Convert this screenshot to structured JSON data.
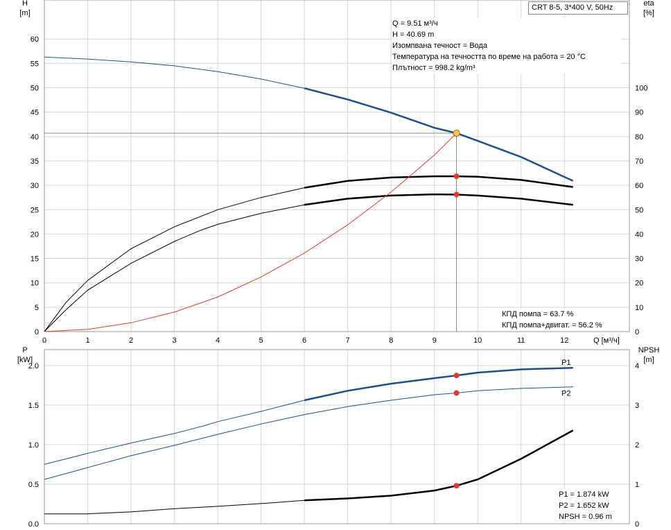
{
  "chart_data": [
    {
      "type": "line",
      "title": "CRT 8-5, 3*400 V, 50Hz",
      "xlabel": "Q [м³/ч]",
      "ylabel_left": "H\n[m]",
      "ylabel_right": "eta\n[%]",
      "xlim": [
        0,
        13.5
      ],
      "ylim_left": [
        0,
        68
      ],
      "ylim_right": [
        0,
        136
      ],
      "x_ticks": [
        0,
        1,
        2,
        3,
        4,
        5,
        6,
        7,
        8,
        9,
        10,
        11,
        12
      ],
      "y_ticks_left": [
        0,
        5,
        10,
        15,
        20,
        25,
        30,
        35,
        40,
        45,
        50,
        55,
        60
      ],
      "y_ticks_right": [
        0,
        10,
        20,
        30,
        40,
        50,
        60,
        70,
        80,
        90,
        100
      ],
      "series": [
        {
          "key": "H",
          "color": "#1f4e8c",
          "axis": "left",
          "bold_from": 6,
          "x": [
            0,
            1,
            2,
            3,
            4,
            5,
            6,
            7,
            8,
            9,
            9.51,
            10,
            11,
            12.2
          ],
          "y": [
            56.3,
            55.9,
            55.3,
            54.5,
            53.3,
            51.8,
            49.9,
            47.6,
            44.9,
            41.8,
            40.69,
            39.1,
            35.8,
            30.9
          ]
        },
        {
          "key": "eta_pump",
          "color": "#000000",
          "axis": "right",
          "bold_from": 6,
          "x": [
            0,
            0.5,
            1,
            2,
            3,
            4,
            5,
            6,
            7,
            8,
            9,
            9.51,
            10,
            11,
            12.2
          ],
          "y": [
            0,
            12,
            21,
            34,
            43,
            50,
            55,
            59,
            61.8,
            63.2,
            63.7,
            63.7,
            63.5,
            62.2,
            59.3
          ]
        },
        {
          "key": "eta_total",
          "color": "#000000",
          "axis": "right",
          "bold_from": 6,
          "x": [
            0,
            0.5,
            1,
            2,
            3,
            3.6,
            4,
            5,
            6,
            7,
            8,
            9,
            9.51,
            10,
            11,
            12.2
          ],
          "y": [
            0,
            9,
            17,
            28,
            37,
            41.5,
            44,
            48.5,
            52,
            54.5,
            55.8,
            56.3,
            56.2,
            55.8,
            54.5,
            52
          ]
        },
        {
          "key": "system",
          "color": "#e8392a",
          "axis": "left",
          "bold_from": 99,
          "x": [
            0,
            1,
            2,
            3,
            4,
            5,
            6,
            7,
            8,
            9,
            9.51
          ],
          "y": [
            0,
            0.45,
            1.8,
            4.0,
            7.1,
            11.2,
            16.1,
            21.9,
            28.6,
            36.2,
            40.69
          ]
        }
      ],
      "operating_point": {
        "Q": 9.51,
        "H": 40.69,
        "eta_pump": 63.7,
        "eta_total": 56.2
      }
    },
    {
      "type": "line",
      "xlabel": "",
      "ylabel_left": "P\n[kW]",
      "ylabel_right": "NPSH\n[m]",
      "xlim": [
        0,
        13.5
      ],
      "ylim_left": [
        0,
        2.2
      ],
      "ylim_right": [
        0,
        4.4
      ],
      "y_ticks_left": [
        "0.0",
        "0.5",
        "1.0",
        "1.5",
        "2.0"
      ],
      "y_ticks_right": [
        0,
        1,
        2,
        3,
        4
      ],
      "series": [
        {
          "key": "P1",
          "name": "P1",
          "color": "#1f4e8c",
          "axis": "left",
          "bold_from": 6,
          "x": [
            0,
            1,
            2,
            3,
            3.7,
            4,
            5,
            6,
            7,
            8,
            9,
            9.51,
            10,
            11,
            12.2
          ],
          "y": [
            0.75,
            0.89,
            1.02,
            1.14,
            1.24,
            1.29,
            1.42,
            1.56,
            1.68,
            1.77,
            1.84,
            1.874,
            1.91,
            1.95,
            1.97
          ]
        },
        {
          "key": "P2",
          "name": "P2",
          "color": "#1f4e8c",
          "axis": "left",
          "bold_from": 99,
          "x": [
            0,
            1,
            2,
            3,
            4,
            5,
            6,
            7,
            8,
            9,
            9.51,
            10,
            11,
            12.2
          ],
          "y": [
            0.56,
            0.71,
            0.86,
            0.99,
            1.13,
            1.26,
            1.38,
            1.48,
            1.56,
            1.63,
            1.652,
            1.68,
            1.71,
            1.73
          ]
        },
        {
          "key": "NPSH",
          "color": "#000000",
          "axis": "right",
          "bold_from": 6,
          "x": [
            0,
            1,
            2,
            3,
            4,
            5,
            6,
            7,
            8,
            9,
            9.51,
            10,
            11,
            12.2
          ],
          "y": [
            0.25,
            0.25,
            0.3,
            0.38,
            0.44,
            0.51,
            0.59,
            0.64,
            0.71,
            0.84,
            0.96,
            1.12,
            1.64,
            2.36
          ]
        }
      ],
      "operating_point": {
        "Q": 9.51,
        "P1": 1.874,
        "P2": 1.652,
        "NPSH": 0.96
      }
    }
  ],
  "title_box": "CRT 8-5, 3*400 V, 50Hz",
  "info_top": [
    "Q = 9.51 м³/ч",
    "H = 40.69 m",
    "Изомпвана течност = Вода",
    "Температура на течността по време на работа = 20 °C",
    "Плътност = 998.2 kg/m³"
  ],
  "info_eff": [
    "КПД помпа = 63.7 %",
    "КПД помпа+двигат. = 56.2 %"
  ],
  "info_power": [
    "P1 = 1.874 kW",
    "P2 = 1.652 kW",
    "NPSH = 0.96 m"
  ],
  "upper_left_unit": [
    "H",
    "[m]"
  ],
  "upper_right_unit": [
    "eta",
    "[%]"
  ],
  "lower_left_unit": [
    "P",
    "[kW]"
  ],
  "lower_right_unit": [
    "NPSH",
    "[m]"
  ],
  "x_axis_label": "Q [м³/ч]"
}
